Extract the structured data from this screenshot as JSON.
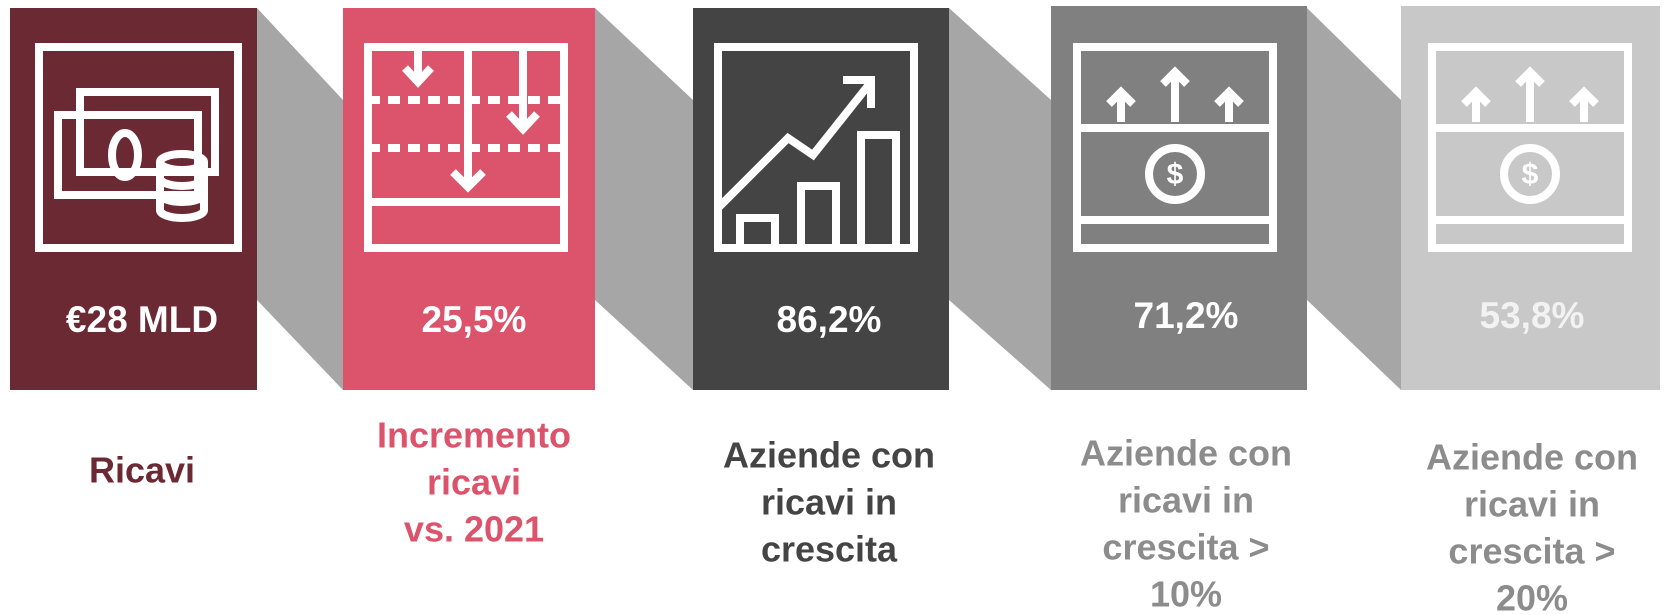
{
  "tiles": [
    {
      "value": "€28 MLD",
      "label_lines": [
        "Ricavi"
      ]
    },
    {
      "value": "25,5%",
      "label_lines": [
        "Incremento",
        "ricavi",
        "vs. 2021"
      ]
    },
    {
      "value": "86,2%",
      "label_lines": [
        "Aziende con",
        "ricavi in",
        "crescita"
      ]
    },
    {
      "value": "71,2%",
      "label_lines": [
        "Aziende con",
        "ricavi in",
        "crescita >",
        "10%"
      ]
    },
    {
      "value": "53,8%",
      "label_lines": [
        "Aziende con",
        "ricavi in",
        "crescita >",
        "20%"
      ]
    }
  ]
}
